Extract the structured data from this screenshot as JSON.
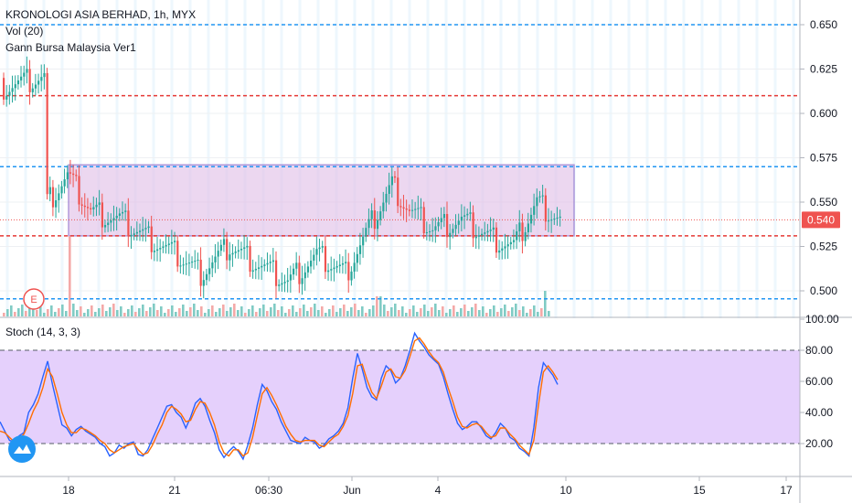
{
  "chart_data": [
    {
      "type": "candlestick",
      "title": "KRONOLOGI ASIA BERHAD, 1h, MYX",
      "indicators": [
        "Vol (20)",
        "Gann Bursa Malaysia Ver1"
      ],
      "y_ticks": [
        "0.650",
        "0.625",
        "0.600",
        "0.575",
        "0.550",
        "0.525",
        "0.500"
      ],
      "ylim": [
        0.49,
        0.66
      ],
      "last_price": "0.540",
      "colors": {
        "up": "#26a69a",
        "down": "#ef5350",
        "box_fill": "#e1bee7",
        "box_border": "#7e57c2",
        "blue_level": "#2196f3",
        "red_level": "#e53935"
      },
      "levels_blue": [
        0.65,
        0.57,
        0.4955
      ],
      "levels_red": [
        0.61,
        0.531
      ],
      "box": {
        "x_from": "18",
        "x_to": "10",
        "top": 0.571,
        "bottom": 0.531
      },
      "event_marker": "E",
      "x_ticks": [
        "18",
        "21",
        "06:30",
        "Jun",
        "4",
        "10",
        "15",
        "17"
      ]
    },
    {
      "type": "line",
      "title": "Stoch (14, 3, 3)",
      "y_ticks": [
        "100.00",
        "80.00",
        "60.00",
        "40.00",
        "20.00"
      ],
      "ylim": [
        0,
        100
      ],
      "bands": [
        80,
        20
      ],
      "series": [
        {
          "color": "#2962ff",
          "values": [
            34,
            28,
            22,
            21,
            25,
            27,
            40,
            45,
            52,
            63,
            73,
            58,
            45,
            32,
            30,
            25,
            29,
            31,
            28,
            26,
            24,
            20,
            18,
            12,
            14,
            19,
            17,
            20,
            21,
            13,
            12,
            16,
            23,
            30,
            37,
            44,
            45,
            40,
            37,
            30,
            37,
            46,
            49,
            44,
            35,
            27,
            16,
            11,
            15,
            18,
            15,
            10,
            19,
            30,
            45,
            58,
            54,
            47,
            42,
            34,
            28,
            22,
            21,
            20,
            24,
            22,
            21,
            17,
            19,
            23,
            25,
            28,
            33,
            43,
            62,
            78,
            68,
            56,
            50,
            48,
            62,
            70,
            67,
            59,
            62,
            70,
            80,
            91,
            86,
            82,
            77,
            74,
            71,
            63,
            52,
            42,
            33,
            29,
            31,
            34,
            34,
            30,
            25,
            23,
            27,
            33,
            30,
            24,
            22,
            17,
            15,
            12,
            30,
            56,
            72,
            68,
            64,
            58
          ]
        },
        {
          "color": "#ff6d00",
          "values": [
            28,
            27,
            24,
            21,
            23,
            26,
            33,
            41,
            47,
            56,
            68,
            63,
            52,
            40,
            32,
            27,
            27,
            30,
            29,
            27,
            25,
            22,
            20,
            16,
            14,
            16,
            18,
            19,
            20,
            16,
            13,
            14,
            19,
            26,
            32,
            40,
            44,
            42,
            39,
            34,
            35,
            42,
            47,
            46,
            40,
            32,
            21,
            14,
            12,
            16,
            16,
            12,
            14,
            24,
            38,
            52,
            56,
            51,
            45,
            38,
            31,
            26,
            22,
            21,
            22,
            22,
            22,
            19,
            18,
            21,
            24,
            26,
            31,
            38,
            52,
            70,
            71,
            61,
            53,
            49,
            57,
            66,
            68,
            63,
            62,
            67,
            76,
            86,
            88,
            84,
            79,
            75,
            72,
            66,
            56,
            47,
            37,
            31,
            30,
            32,
            33,
            31,
            27,
            24,
            25,
            30,
            30,
            26,
            23,
            19,
            16,
            13,
            22,
            45,
            66,
            70,
            66,
            61
          ]
        }
      ],
      "x_ticks": [
        "18",
        "21",
        "06:30",
        "Jun",
        "4",
        "10",
        "15",
        "17"
      ]
    }
  ]
}
